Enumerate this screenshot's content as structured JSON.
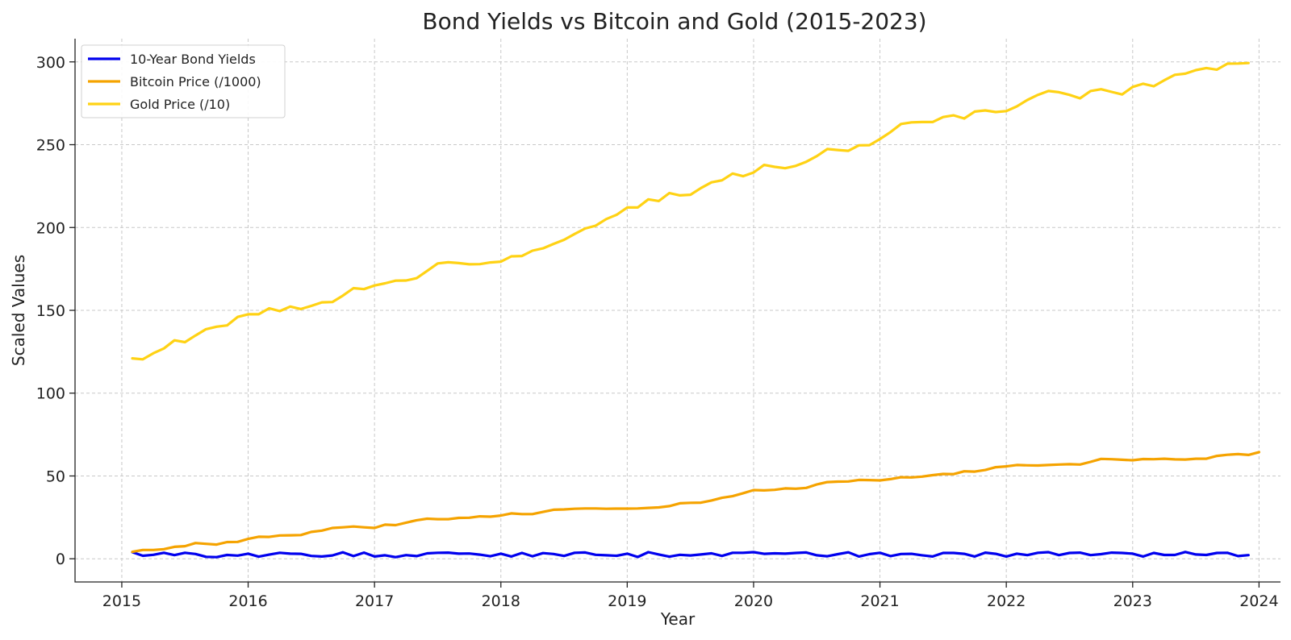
{
  "chart_data": {
    "type": "line",
    "title": "Bond Yields vs Bitcoin and Gold (2015-2023)",
    "xlabel": "Year",
    "ylabel": "Scaled Values",
    "xlim": [
      2014.63,
      2024.17
    ],
    "ylim": [
      -14,
      314
    ],
    "x_ticks": [
      "2015",
      "2016",
      "2017",
      "2018",
      "2019",
      "2020",
      "2021",
      "2022",
      "2023",
      "2024"
    ],
    "y_ticks": [
      "0",
      "50",
      "100",
      "150",
      "200",
      "250",
      "300"
    ],
    "grid": true,
    "legend_position": "top-left",
    "x_start": "2015-01",
    "x_step": "monthly",
    "series": [
      {
        "name": "10-Year Bond Yields",
        "color": "#0000ee",
        "values": [
          4,
          1.8,
          2.4,
          3.6,
          2.2,
          3.6,
          2.9,
          1.2,
          1,
          2.3,
          1.9,
          3.1,
          1.3,
          2.5,
          3.6,
          3.1,
          3,
          1.7,
          1.4,
          2,
          3.9,
          1.6,
          3.7,
          1.4,
          2.1,
          1,
          2.2,
          1.6,
          3.3,
          3.6,
          3.7,
          3.1,
          3.2,
          2.5,
          1.5,
          3.1,
          1.4,
          3.5,
          1.5,
          3.4,
          2.9,
          1.7,
          3.6,
          3.8,
          2.4,
          2.1,
          1.8,
          3.1,
          1.1,
          4,
          2.6,
          1.3,
          2.4,
          2,
          2.6,
          3.3,
          1.7,
          3.6,
          3.6,
          4,
          3,
          3.3,
          3.1,
          3.5,
          3.8,
          2.1,
          1.5,
          2.8,
          3.9,
          1.4,
          2.8,
          3.6,
          1.6,
          2.9,
          3,
          2.1,
          1.4,
          3.5,
          3.5,
          3,
          1.4,
          3.7,
          3,
          1.4,
          3.1,
          2.2,
          3.6,
          4,
          2.2,
          3.5,
          3.7,
          2.2,
          2.8,
          3.7,
          3.5,
          3.1,
          1.4,
          3.5,
          2.3,
          2.3,
          4.1,
          2.6,
          2.3,
          3.5,
          3.6,
          1.6,
          2.2
        ]
      },
      {
        "name": "Bitcoin Price (/1000)",
        "color": "#f5a300",
        "values": [
          4.2,
          5.3,
          5.3,
          5.8,
          7.2,
          7.6,
          9.5,
          9,
          8.6,
          10.1,
          10.2,
          12,
          13.3,
          13.2,
          14.1,
          14.2,
          14.3,
          16.2,
          17,
          18.6,
          19,
          19.5,
          19,
          18.6,
          20.6,
          20.3,
          21.8,
          23.3,
          24.2,
          23.9,
          23.9,
          24.7,
          24.8,
          25.6,
          25.4,
          26.1,
          27.4,
          27,
          27,
          28.3,
          29.6,
          29.8,
          30.2,
          30.4,
          30.4,
          30.2,
          30.3,
          30.3,
          30.4,
          30.7,
          31,
          31.8,
          33.5,
          33.8,
          33.9,
          35.2,
          36.8,
          37.8,
          39.6,
          41.5,
          41.3,
          41.6,
          42.5,
          42.3,
          42.8,
          44.9,
          46.3,
          46.6,
          46.7,
          47.6,
          47.5,
          47.3,
          48.1,
          49.2,
          49.1,
          49.6,
          50.5,
          51.2,
          51.1,
          52.8,
          52.6,
          53.6,
          55.3,
          55.8,
          56.6,
          56.4,
          56.3,
          56.6,
          56.9,
          57.1,
          56.9,
          58.5,
          60.3,
          60.1,
          59.8,
          59.5,
          60.2,
          60.1,
          60.4,
          60,
          59.9,
          60.4,
          60.4,
          62.1,
          62.8,
          63.2,
          62.7,
          64.4
        ]
      },
      {
        "name": "Gold Price (/10)",
        "color": "#ffd214",
        "values": [
          121,
          120.4,
          124.1,
          127,
          131.9,
          130.8,
          134.8,
          138.6,
          140.1,
          140.9,
          146,
          147.6,
          147.6,
          151.2,
          149.5,
          152.3,
          150.8,
          152.7,
          154.8,
          155,
          158.9,
          163.4,
          162.8,
          165,
          166.3,
          167.9,
          168,
          169.4,
          173.8,
          178.3,
          179,
          178.5,
          177.8,
          177.9,
          178.9,
          179.4,
          182.6,
          182.8,
          186,
          187.4,
          190.1,
          192.6,
          196.1,
          199.4,
          201.1,
          205.1,
          207.7,
          212.1,
          212.1,
          217,
          216,
          220.8,
          219.4,
          219.8,
          223.8,
          227.3,
          228.5,
          232.6,
          231,
          233.2,
          237.8,
          236.6,
          235.8,
          237.2,
          239.7,
          243.1,
          247.4,
          246.8,
          246.3,
          249.6,
          249.7,
          253.4,
          257.6,
          262.5,
          263.5,
          263.7,
          263.7,
          266.7,
          267.7,
          265.8,
          270,
          270.7,
          269.7,
          270.3,
          273.1,
          277,
          280.1,
          282.4,
          281.7,
          280.1,
          278,
          282.4,
          283.5,
          281.9,
          280.3,
          284.9,
          286.8,
          285.3,
          288.9,
          292.2,
          292.9,
          295,
          296.3,
          295.3,
          298.9,
          299,
          299.3
        ]
      }
    ]
  }
}
